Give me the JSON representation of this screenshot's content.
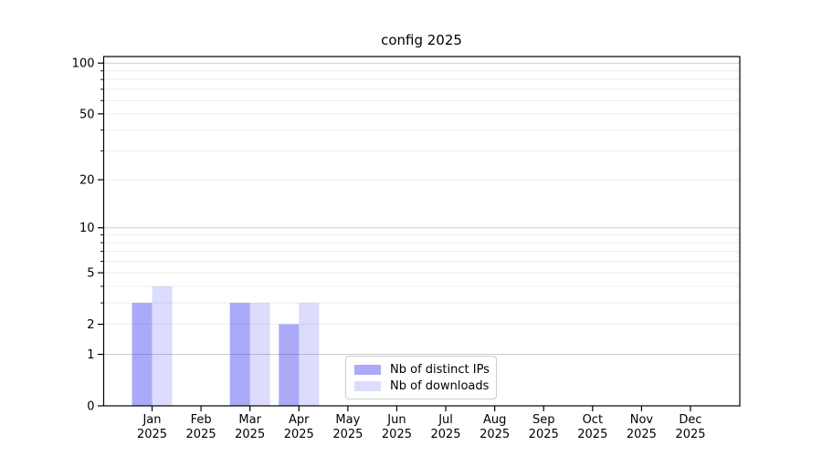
{
  "title": "config 2025",
  "chart_data": {
    "type": "bar",
    "title": "config 2025",
    "categories": [
      "Jan 2025",
      "Feb 2025",
      "Mar 2025",
      "Apr 2025",
      "May 2025",
      "Jun 2025",
      "Jul 2025",
      "Aug 2025",
      "Sep 2025",
      "Oct 2025",
      "Nov 2025",
      "Dec 2025"
    ],
    "series": [
      {
        "name": "Nb of distinct IPs",
        "fill": "rgba(70,70,240,0.46)",
        "values": [
          3,
          0,
          3,
          2,
          0,
          0,
          0,
          0,
          0,
          0,
          0,
          0
        ]
      },
      {
        "name": "Nb of downloads",
        "fill": "rgba(70,70,240,0.19)",
        "values": [
          4,
          0,
          3,
          3,
          0,
          0,
          0,
          0,
          0,
          0,
          0,
          0
        ]
      }
    ],
    "yscale": "log1p",
    "ylim": [
      0,
      109
    ],
    "y_tick_values": [
      0,
      1,
      2,
      5,
      10,
      20,
      50,
      100
    ],
    "y_minor_tick_values": [
      3,
      4,
      6,
      7,
      8,
      9,
      30,
      40,
      60,
      70,
      80,
      90
    ],
    "grid_minor_values": [
      2,
      3,
      4,
      5,
      6,
      7,
      8,
      9,
      20,
      30,
      40,
      50,
      60,
      70,
      80,
      90
    ],
    "grid_major_values": [
      1,
      10,
      100
    ],
    "grid_on": true,
    "legend_position": "lower center",
    "colors": {
      "grid_minor": "#ececec",
      "grid_major": "#cccccc",
      "spine": "#000000",
      "tick_text": "#000000"
    }
  },
  "legend": {
    "items": [
      {
        "label": "Nb of distinct IPs"
      },
      {
        "label": "Nb of downloads"
      }
    ]
  }
}
